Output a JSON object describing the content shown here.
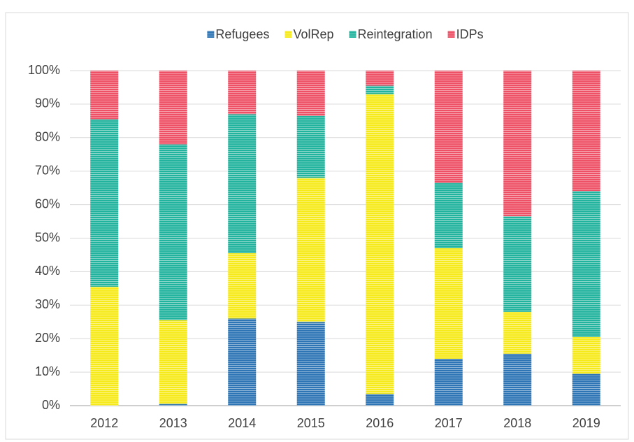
{
  "chart_data": {
    "type": "bar",
    "stacked": true,
    "categories": [
      "2012",
      "2013",
      "2014",
      "2015",
      "2016",
      "2017",
      "2018",
      "2019"
    ],
    "series": [
      {
        "name": "Refugees",
        "color": "#2e75b6",
        "values": [
          0,
          0.5,
          26,
          25,
          3.5,
          14,
          15.5,
          9.5
        ]
      },
      {
        "name": "VolRep",
        "color": "#f7ea1a",
        "values": [
          35.5,
          25,
          19.5,
          43,
          89.5,
          33,
          12.5,
          11
        ]
      },
      {
        "name": "Reintegration",
        "color": "#22b39e",
        "values": [
          50,
          52.5,
          41.5,
          18.5,
          2.5,
          19.5,
          28.5,
          43.5
        ]
      },
      {
        "name": "IDPs",
        "color": "#ee5066",
        "values": [
          14.5,
          22,
          13,
          13.5,
          4.5,
          33.5,
          43.5,
          36
        ]
      }
    ],
    "ylim": [
      0,
      100
    ],
    "yticks": [
      {
        "value": 0,
        "label": "0%"
      },
      {
        "value": 10,
        "label": "10%"
      },
      {
        "value": 20,
        "label": "20%"
      },
      {
        "value": 30,
        "label": "30%"
      },
      {
        "value": 40,
        "label": "40%"
      },
      {
        "value": 50,
        "label": "50%"
      },
      {
        "value": 60,
        "label": "60%"
      },
      {
        "value": 70,
        "label": "70%"
      },
      {
        "value": 80,
        "label": "80%"
      },
      {
        "value": 90,
        "label": "90%"
      },
      {
        "value": 100,
        "label": "100%"
      }
    ],
    "grid": true,
    "legend": "top"
  }
}
